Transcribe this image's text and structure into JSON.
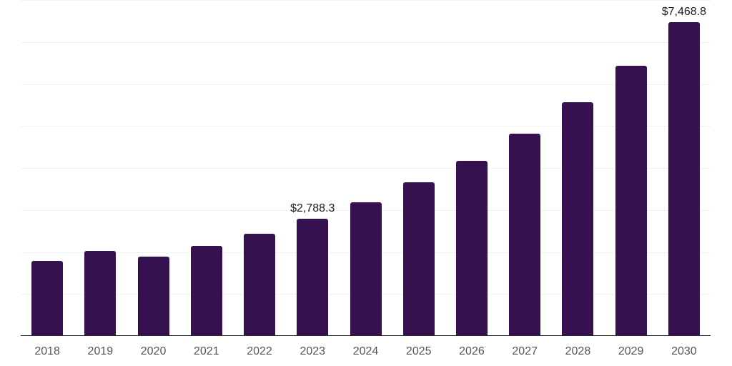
{
  "chart_data": {
    "type": "bar",
    "title": "",
    "xlabel": "",
    "ylabel": "",
    "categories": [
      "2018",
      "2019",
      "2020",
      "2021",
      "2022",
      "2023",
      "2024",
      "2025",
      "2026",
      "2027",
      "2028",
      "2029",
      "2030"
    ],
    "values": [
      1790,
      2025,
      1895,
      2140,
      2430,
      2788.3,
      3190,
      3655,
      4165,
      4815,
      5560,
      6430,
      7468.8
    ],
    "data_labels": {
      "2023": "$2,788.3",
      "2030": "$7,468.8"
    },
    "ylim": [
      0,
      8000
    ],
    "gridline_step": 1000,
    "grid": "horizontal",
    "y_tick_labels_shown": false,
    "legend_position": "none",
    "colors": {
      "bar": "#36114F",
      "axis_line": "#262626",
      "tick_label": "#555555",
      "data_label": "#1c1c1c",
      "gridline": "#f0f0f0",
      "background": "#ffffff"
    }
  }
}
